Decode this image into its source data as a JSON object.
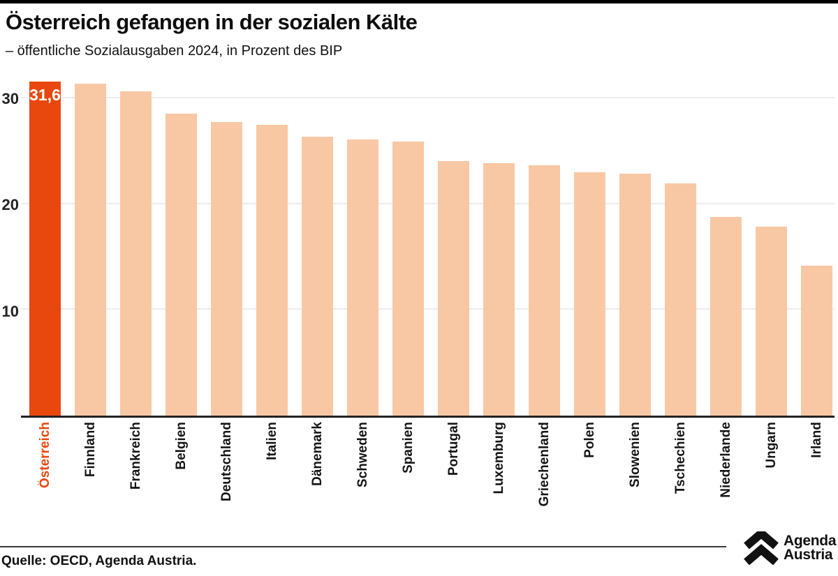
{
  "header": {
    "title": "Österreich gefangen in der sozialen Kälte",
    "subtitle": "– öffentliche Sozialausgaben 2024, in Prozent des BIP"
  },
  "chart_data": {
    "type": "bar",
    "title": "Österreich gefangen in der sozialen Kälte",
    "subtitle": "– öffentliche Sozialausgaben 2024, in Prozent des BIP",
    "categories": [
      "Österreich",
      "Finnland",
      "Frankreich",
      "Belgien",
      "Deutschland",
      "Italien",
      "Dänemark",
      "Schweden",
      "Spanien",
      "Portugal",
      "Luxemburg",
      "Griechenland",
      "Polen",
      "Slowenien",
      "Tschechien",
      "Niederlande",
      "Ungarn",
      "Irland"
    ],
    "values": [
      31.6,
      31.4,
      30.7,
      28.6,
      27.8,
      27.5,
      26.4,
      26.1,
      25.9,
      24.1,
      23.9,
      23.7,
      23.0,
      22.9,
      22.0,
      18.8,
      17.9,
      14.2
    ],
    "highlight_index": 0,
    "highlight_value_label": "31,6",
    "xlabel": "",
    "ylabel": "",
    "ylim": [
      0,
      32
    ],
    "yticks": [
      10,
      20,
      30
    ],
    "ytick_labels": [
      "10",
      "20",
      "30"
    ],
    "grid": true,
    "legend": "none",
    "colors": {
      "highlight": "#E8470E",
      "default": "#F8C8A4",
      "gridline": "#ededed",
      "axis": "#222222",
      "value_label": "#ffffff"
    }
  },
  "footer": {
    "source": "Quelle: OECD, Agenda Austria.",
    "logo": {
      "line1": "Agenda",
      "line2": "Austria"
    }
  }
}
